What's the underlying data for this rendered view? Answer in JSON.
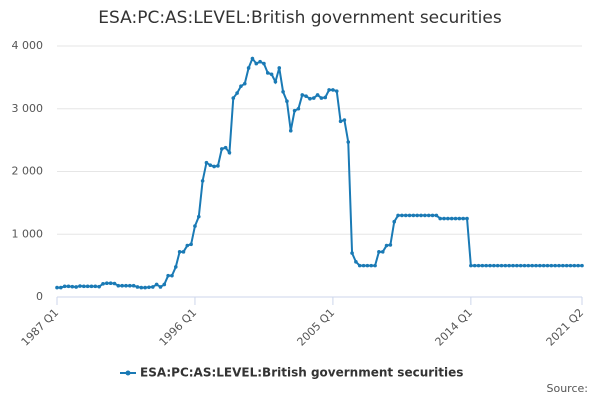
{
  "chart_data": {
    "type": "line",
    "title": "ESA:PC:AS:LEVEL:British government securities",
    "source": "Source:",
    "categories": [
      "1987 Q1",
      null,
      null,
      null,
      null,
      null,
      null,
      null,
      null,
      null,
      null,
      null,
      null,
      null,
      null,
      null,
      null,
      null,
      null,
      null,
      null,
      null,
      null,
      null,
      null,
      null,
      null,
      null,
      null,
      null,
      null,
      null,
      null,
      null,
      null,
      null,
      "1996 Q1",
      null,
      null,
      null,
      null,
      null,
      null,
      null,
      null,
      null,
      null,
      null,
      null,
      null,
      null,
      null,
      null,
      null,
      null,
      null,
      null,
      null,
      null,
      null,
      null,
      null,
      null,
      null,
      null,
      null,
      null,
      null,
      null,
      null,
      null,
      null,
      "2005 Q1",
      null,
      null,
      null,
      null,
      null,
      null,
      null,
      null,
      null,
      null,
      null,
      null,
      null,
      null,
      null,
      null,
      null,
      null,
      null,
      null,
      null,
      null,
      null,
      null,
      null,
      null,
      null,
      null,
      null,
      null,
      null,
      null,
      null,
      null,
      null,
      "2014 Q1",
      null,
      null,
      null,
      null,
      null,
      null,
      null,
      null,
      null,
      null,
      null,
      null,
      null,
      null,
      null,
      null,
      null,
      null,
      null,
      null,
      null,
      null,
      null,
      null,
      null,
      null,
      null,
      null,
      "2021 Q2"
    ],
    "series": [
      {
        "name": "ESA:PC:AS:LEVEL:British government securities",
        "color": "#1a7ab5",
        "values": [
          150,
          150,
          170,
          170,
          165,
          160,
          175,
          170,
          170,
          170,
          170,
          165,
          210,
          220,
          220,
          215,
          180,
          180,
          180,
          180,
          180,
          160,
          150,
          150,
          155,
          160,
          200,
          160,
          200,
          340,
          340,
          480,
          720,
          720,
          820,
          840,
          1130,
          1280,
          1850,
          2140,
          2100,
          2080,
          2090,
          2360,
          2380,
          2300,
          3170,
          3250,
          3360,
          3400,
          3650,
          3800,
          3720,
          3750,
          3720,
          3570,
          3550,
          3430,
          3650,
          3270,
          3120,
          2650,
          2970,
          3000,
          3220,
          3200,
          3160,
          3170,
          3220,
          3170,
          3180,
          3300,
          3300,
          3280,
          2800,
          2820,
          2470,
          700,
          560,
          500,
          500,
          500,
          500,
          500,
          720,
          720,
          820,
          830,
          1200,
          1300,
          1300,
          1300,
          1300,
          1300,
          1300,
          1300,
          1300,
          1300,
          1300,
          1300,
          1250,
          1250,
          1250,
          1250,
          1250,
          1250,
          1250,
          1250,
          500,
          500,
          500,
          500,
          500,
          500,
          500,
          500,
          500,
          500,
          500,
          500,
          500,
          500,
          500,
          500,
          500,
          500,
          500,
          500,
          500,
          500,
          500,
          500,
          500,
          500,
          500,
          500,
          500,
          500
        ]
      }
    ],
    "ylim": [
      0,
      4000
    ],
    "yticks": [
      0,
      {
        "value": 1000,
        "label": "1 000"
      },
      {
        "value": 2000,
        "label": "2 000"
      },
      {
        "value": 3000,
        "label": "3 000"
      },
      {
        "value": 4000,
        "label": "4 000"
      }
    ],
    "grid": true,
    "legend": "bottom"
  }
}
